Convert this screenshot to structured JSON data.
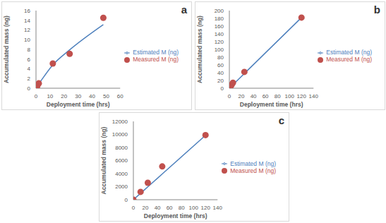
{
  "chart_data": [
    {
      "type": "line",
      "title": "a",
      "x_label": "Deployment time (hrs)",
      "y_label": "Accumulated mass (ng)",
      "x": [
        0,
        0.5,
        1,
        2,
        12,
        24,
        48
      ],
      "series": [
        {
          "name": "Measured M (ng)",
          "type": "scatter",
          "marker": "circle",
          "color": "#c0504d",
          "values": [
            0,
            0.2,
            0.5,
            1.0,
            5.1,
            7.1,
            14.5
          ]
        },
        {
          "name": "Estimated M (ng)",
          "type": "line",
          "line_style": "solid",
          "color": "#4f81bd",
          "values": [
            0,
            0.2,
            0.5,
            0.9,
            4.8,
            7.9,
            13.1
          ]
        }
      ],
      "xlim": [
        0,
        60
      ],
      "xticks": [
        0,
        10,
        20,
        30,
        40,
        50,
        60
      ],
      "ylim": [
        0,
        16
      ],
      "yticks": [
        0,
        2,
        4,
        6,
        8,
        10,
        12,
        14,
        16
      ],
      "grid": false,
      "legend": "right"
    },
    {
      "type": "line",
      "title": "b",
      "x_label": "Deployment time (hrs)",
      "y_label": "Accumulated mass (ng)",
      "x": [
        0,
        1,
        2,
        4,
        6,
        25,
        120
      ],
      "series": [
        {
          "name": "Measured M (ng)",
          "type": "scatter",
          "marker": "circle",
          "color": "#c0504d",
          "values": [
            0,
            2,
            5,
            9,
            14,
            42,
            182
          ]
        },
        {
          "name": "Estimated M (ng)",
          "type": "line",
          "line_style": "solid",
          "color": "#4f81bd",
          "values": [
            0,
            1.5,
            3,
            6.1,
            9.1,
            38,
            182
          ]
        }
      ],
      "xlim": [
        0,
        140
      ],
      "xticks": [
        0,
        20,
        40,
        60,
        80,
        100,
        120,
        140
      ],
      "ylim": [
        0,
        200
      ],
      "yticks": [
        0,
        20,
        40,
        60,
        80,
        100,
        120,
        140,
        160,
        180,
        200
      ],
      "grid": false,
      "legend": "right"
    },
    {
      "type": "line",
      "title": "c",
      "x_label": "Deployment time (hrs)",
      "y_label": "Accumulated mass (ng)",
      "x": [
        0,
        12,
        24,
        48,
        120
      ],
      "series": [
        {
          "name": "Measured M (ng)",
          "type": "scatter",
          "marker": "circle",
          "color": "#c0504d",
          "values": [
            0,
            1200,
            2600,
            5100,
            9900
          ]
        },
        {
          "name": "Estimated M (ng)",
          "type": "line",
          "line_style": "solid",
          "color": "#4f81bd",
          "values": [
            0,
            980,
            1970,
            3940,
            9860
          ]
        }
      ],
      "xlim": [
        0,
        140
      ],
      "xticks": [
        0,
        20,
        40,
        60,
        80,
        100,
        120,
        140
      ],
      "ylim": [
        0,
        12000
      ],
      "yticks": [
        0,
        2000,
        4000,
        6000,
        8000,
        10000,
        12000
      ],
      "grid": false,
      "legend": "right"
    }
  ]
}
